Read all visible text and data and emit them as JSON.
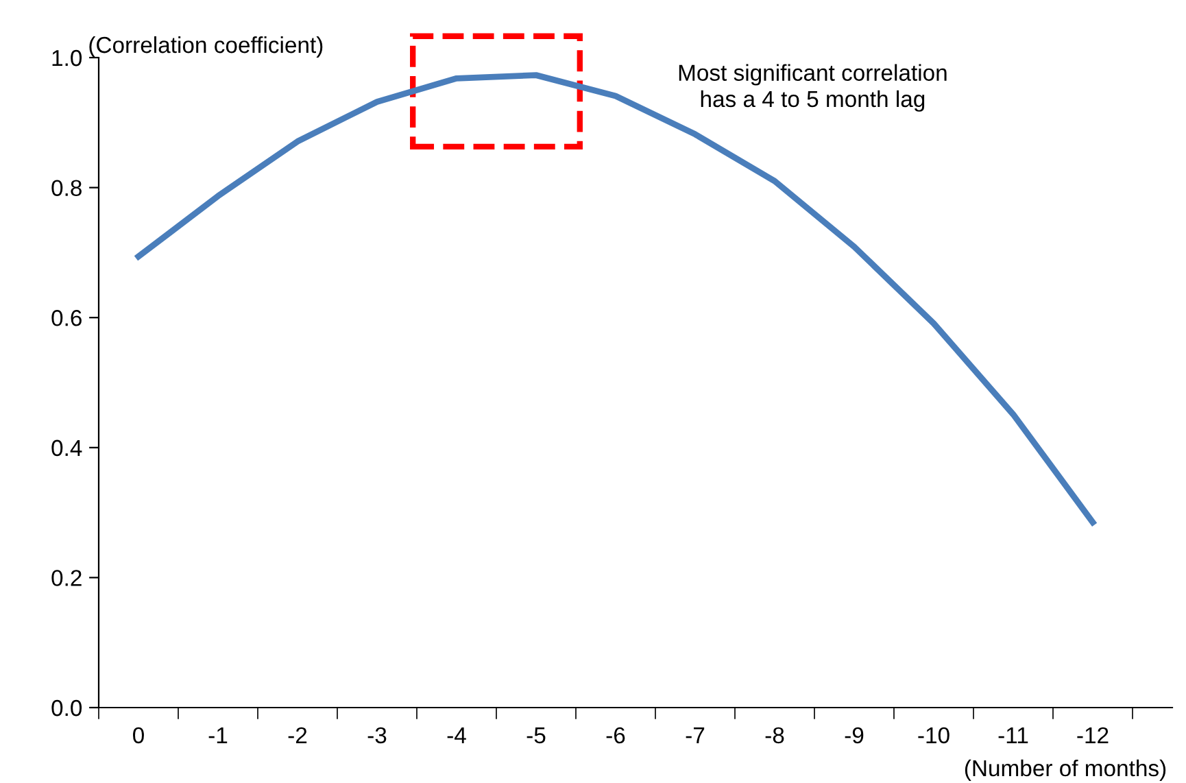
{
  "chart_data": {
    "type": "line",
    "ylabel": "(Correlation coefficient)",
    "xlabel": "(Number of months)",
    "categories": [
      "0",
      "-1",
      "-2",
      "-3",
      "-4",
      "-5",
      "-6",
      "-7",
      "-8",
      "-9",
      "-10",
      "-11",
      "-12"
    ],
    "series": [
      {
        "color": "#4a7ebb",
        "values": [
          0.694,
          0.787,
          0.871,
          0.932,
          0.968,
          0.973,
          0.941,
          0.882,
          0.81,
          0.709,
          0.591,
          0.451,
          0.285
        ]
      }
    ],
    "ylim": [
      0,
      1
    ],
    "yticks": [
      {
        "value": 0,
        "label": "0.0"
      },
      {
        "value": 0.2,
        "label": "0.2"
      },
      {
        "value": 0.4,
        "label": "0.4"
      },
      {
        "value": 0.6,
        "label": "0.6"
      },
      {
        "value": 0.8,
        "label": "0.8"
      },
      {
        "value": 1,
        "label": "1.0"
      }
    ],
    "annotations": [
      "Most significant correlation\nhas a 4 to 5 month lag"
    ],
    "grid": false,
    "legend": false,
    "marker": "none",
    "line_style": "solid"
  }
}
